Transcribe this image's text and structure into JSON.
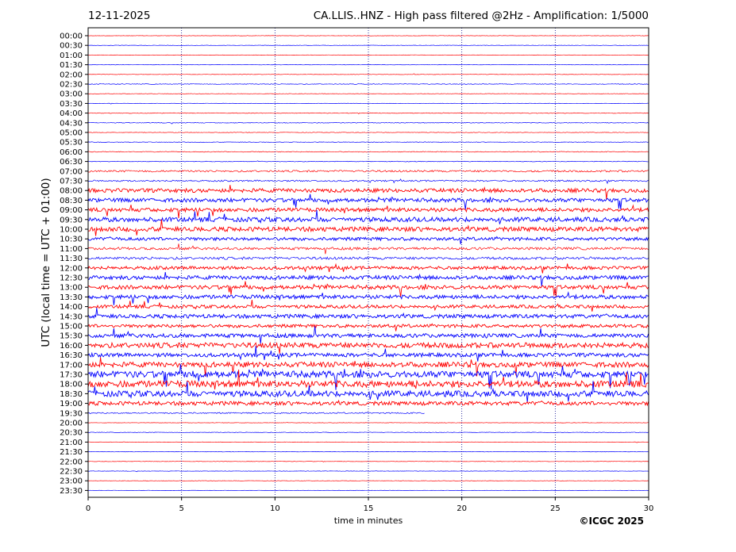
{
  "header": {
    "date": "12-11-2025",
    "title": "CA.LLIS..HNZ - High pass filtered @2Hz - Amplification: 1/5000"
  },
  "footer": {
    "copyright": "©ICGC 2025"
  },
  "colors": {
    "even_trace": "#ff0000",
    "odd_trace": "#0000ff",
    "grid": "#00008b"
  },
  "chart_data": {
    "type": "line",
    "title": "CA.LLIS..HNZ - High pass filtered @2Hz - Amplification: 1/5000",
    "xlabel": "time in minutes",
    "ylabel": "UTC (local time = UTC + 01:00)",
    "xlim": [
      0,
      30
    ],
    "xticks": [
      0,
      5,
      10,
      15,
      20,
      25,
      30
    ],
    "grid": "vertical dotted at 5-minute intervals",
    "rows": [
      "00:00",
      "00:30",
      "01:00",
      "01:30",
      "02:00",
      "02:30",
      "03:00",
      "03:30",
      "04:00",
      "04:30",
      "05:00",
      "05:30",
      "06:00",
      "06:30",
      "07:00",
      "07:30",
      "08:00",
      "08:30",
      "09:00",
      "09:30",
      "10:00",
      "10:30",
      "11:00",
      "11:30",
      "12:00",
      "12:30",
      "13:00",
      "13:30",
      "14:00",
      "14:30",
      "15:00",
      "15:30",
      "16:00",
      "16:30",
      "17:00",
      "17:30",
      "18:00",
      "18:30",
      "19:00",
      "19:30",
      "20:00",
      "20:30",
      "21:00",
      "21:30",
      "22:00",
      "22:30",
      "23:00",
      "23:30"
    ],
    "activity_level": [
      0.3,
      0.3,
      0.3,
      0.3,
      0.3,
      0.5,
      0.3,
      0.3,
      0.5,
      0.5,
      0.4,
      0.4,
      0.6,
      0.5,
      1.5,
      1.2,
      3,
      3,
      3,
      3.5,
      3.5,
      2.5,
      2,
      2,
      2.5,
      3,
      3,
      3,
      2.5,
      3,
      2.5,
      3,
      4,
      3,
      4,
      5,
      5,
      4.5,
      3,
      1,
      0.3,
      0.4,
      0.3,
      0.3,
      0.3,
      0.3,
      0.3,
      0.3
    ],
    "note_end": {
      "row": "19:30",
      "minute": 18
    }
  }
}
